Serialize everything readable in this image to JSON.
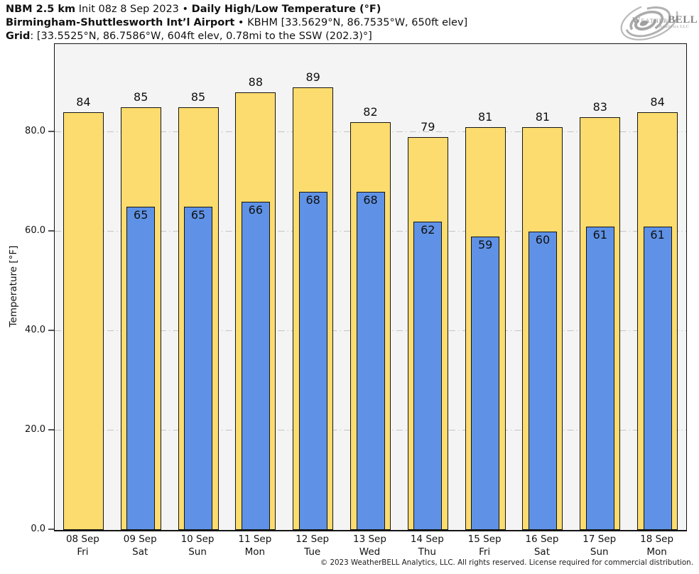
{
  "title": {
    "model": "NBM 2.5 km",
    "init": " Init 08z 8 Sep 2023 • ",
    "product": "Daily High/Low Temperature (°F)",
    "station": "Birmingham-Shuttlesworth Int’l Airport",
    "station_rest": " • KBHM [33.5629°N, 86.7535°W, 650ft elev]",
    "grid_label": "Grid",
    "grid_rest": ": [33.5525°N, 86.7586°W, 604ft elev, 0.78mi to the SSW (202.3)°]"
  },
  "logo": {
    "brand_weather": "Weather",
    "brand_bell": "BELL",
    "brand_sub": "Analytics LLC",
    "icon": "hurricane-swirl-icon"
  },
  "chart_data": {
    "type": "bar",
    "title": "Daily High/Low Temperature (°F)",
    "xlabel": "",
    "ylabel": "Temperature [°F]",
    "ylim": [
      0,
      97.7
    ],
    "yticks": [
      0,
      20,
      40,
      60,
      80
    ],
    "ytick_labels": [
      "0.0",
      "20.0",
      "40.0",
      "60.0",
      "80.0"
    ],
    "grid": "horizontal dash-dot lines at y ticks",
    "legend": "none",
    "plot_background": "#f4f4f4",
    "gridline_color": "#c4c4c4",
    "bar_outline": "#141414",
    "categories": [
      {
        "date": "08 Sep",
        "day": "Fri"
      },
      {
        "date": "09 Sep",
        "day": "Sat"
      },
      {
        "date": "10 Sep",
        "day": "Sun"
      },
      {
        "date": "11 Sep",
        "day": "Mon"
      },
      {
        "date": "12 Sep",
        "day": "Tue"
      },
      {
        "date": "13 Sep",
        "day": "Wed"
      },
      {
        "date": "14 Sep",
        "day": "Thu"
      },
      {
        "date": "15 Sep",
        "day": "Fri"
      },
      {
        "date": "16 Sep",
        "day": "Sat"
      },
      {
        "date": "17 Sep",
        "day": "Sun"
      },
      {
        "date": "18 Sep",
        "day": "Mon"
      }
    ],
    "series": [
      {
        "name": "Daily High",
        "color": "#fcdc6e",
        "values": [
          84,
          85,
          85,
          88,
          89,
          82,
          79,
          81,
          81,
          83,
          84
        ]
      },
      {
        "name": "Daily Low",
        "color": "#5f92e6",
        "values": [
          null,
          65,
          65,
          66,
          68,
          68,
          62,
          59,
          60,
          61,
          61
        ]
      }
    ]
  },
  "footer": {
    "copyright": "© 2023 WeatherBELL Analytics, LLC. All rights reserved. License required for commercial distribution."
  }
}
